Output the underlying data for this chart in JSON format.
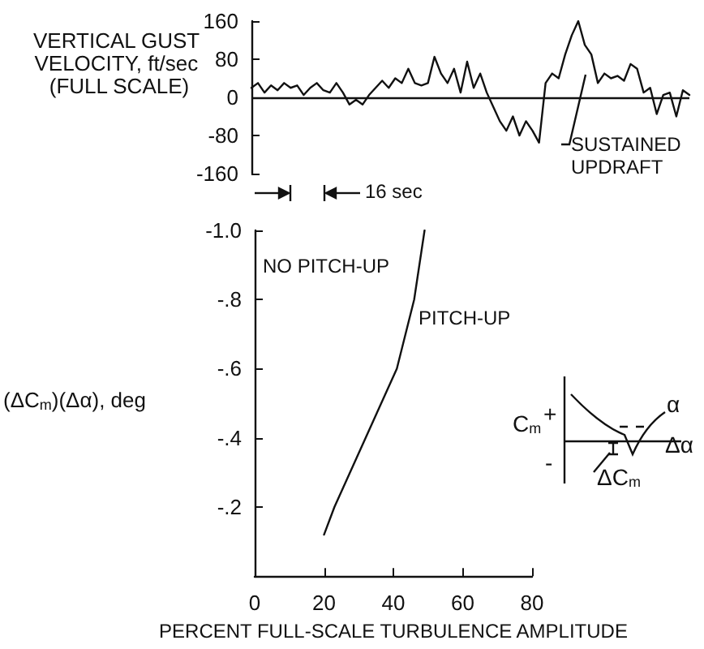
{
  "chart_data": [
    {
      "type": "line",
      "ylabel": "VERTICAL GUST VELOCITY, ft/sec (FULL SCALE)",
      "categories": [
        null,
        null,
        null,
        null,
        null,
        null,
        null,
        null,
        null,
        null,
        null,
        null,
        null,
        null,
        null,
        null,
        null,
        null,
        null,
        null,
        null,
        null,
        null,
        null,
        null,
        null,
        null,
        null,
        null,
        null,
        null,
        null,
        null,
        null,
        null,
        null,
        null,
        null,
        null,
        null,
        null,
        null,
        null,
        null,
        null,
        null,
        null,
        null,
        null,
        null,
        null,
        null,
        null,
        null,
        null,
        null,
        null,
        null,
        null,
        null,
        null,
        null,
        null,
        null,
        null,
        null,
        null,
        null
      ],
      "values": [
        20,
        30,
        10,
        25,
        15,
        30,
        20,
        25,
        5,
        20,
        30,
        15,
        10,
        30,
        10,
        -15,
        -5,
        -15,
        5,
        20,
        35,
        20,
        40,
        30,
        60,
        30,
        25,
        30,
        85,
        50,
        30,
        60,
        10,
        75,
        20,
        50,
        10,
        -20,
        -50,
        -70,
        -40,
        -80,
        -50,
        -70,
        -95,
        30,
        50,
        40,
        90,
        130,
        160,
        110,
        90,
        30,
        50,
        40,
        45,
        35,
        70,
        60,
        10,
        20,
        -35,
        5,
        10,
        -40,
        15,
        5
      ],
      "color": "#111111",
      "ylim": [
        -160,
        160
      ],
      "yticks": [
        -160,
        -80,
        0,
        80,
        160
      ],
      "tick_labels": "y",
      "grid": false,
      "marker": "none",
      "line_style": "solid",
      "ref_lines": [
        {
          "axis": "y",
          "value": 0
        }
      ],
      "annotations": [
        "SUSTAINED UPDRAFT",
        "16 sec"
      ]
    },
    {
      "type": "line",
      "xlabel": "PERCENT FULL-SCALE TURBULENCE AMPLITUDE",
      "ylabel": "(ΔC$_{m}$)(Δα), deg",
      "x": [
        20,
        23,
        32,
        41,
        46,
        49
      ],
      "values": [
        -0.12,
        -0.2,
        -0.4,
        -0.6,
        -0.8,
        -1.0
      ],
      "color": "#111111",
      "xlim": [
        0,
        80
      ],
      "xticks": [
        0,
        20,
        40,
        60,
        80
      ],
      "ylim": [
        0,
        -1.0
      ],
      "yticks": [
        {
          "value": -0.2,
          "label": "-.2"
        },
        {
          "value": -0.4,
          "label": "-.4"
        },
        {
          "value": -0.6,
          "label": "-.6"
        },
        {
          "value": -0.8,
          "label": "-.8"
        },
        {
          "value": -1.0,
          "label": "-1.0"
        }
      ],
      "grid": false,
      "marker": "none",
      "line_style": "solid",
      "annotations": [
        "NO PITCH-UP",
        "PITCH-UP",
        "C$_{m}$",
        "+",
        "-",
        "α",
        "ΔC$_{m}$",
        "Δα"
      ]
    }
  ]
}
